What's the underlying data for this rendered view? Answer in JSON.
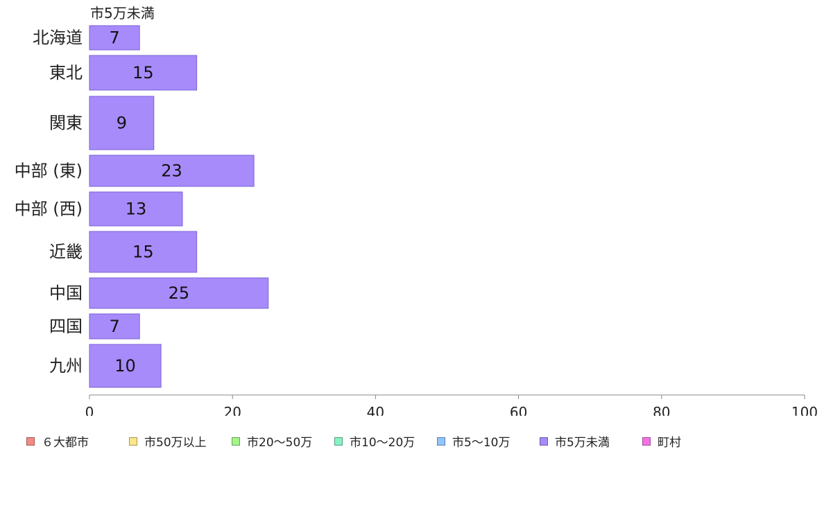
{
  "chart_data": {
    "type": "bar",
    "orientation": "horizontal",
    "series_title": "市5万未満",
    "categories": [
      "北海道",
      "東北",
      "関東",
      "中部 (東)",
      "中部 (西)",
      "近畿",
      "中国",
      "四国",
      "九州"
    ],
    "series": [
      {
        "name": "市5万未満",
        "values": [
          7,
          15,
          9,
          23,
          13,
          15,
          25,
          7,
          10
        ],
        "color": "#a78bfa"
      }
    ],
    "xlim": [
      0,
      100
    ],
    "xticks": [
      "0",
      "20",
      "40",
      "60",
      "80",
      "100"
    ],
    "grid": false,
    "legend_position": "bottom",
    "legend": [
      {
        "label": "６大都市",
        "color": "#f28b82"
      },
      {
        "label": "市50万以上",
        "color": "#fde68a"
      },
      {
        "label": "市20〜50万",
        "color": "#a3f58a"
      },
      {
        "label": "市10〜20万",
        "color": "#86f3c4"
      },
      {
        "label": "市5〜10万",
        "color": "#93c5fd"
      },
      {
        "label": "市5万未満",
        "color": "#a78bfa"
      },
      {
        "label": "町村",
        "color": "#f472e6"
      }
    ]
  }
}
